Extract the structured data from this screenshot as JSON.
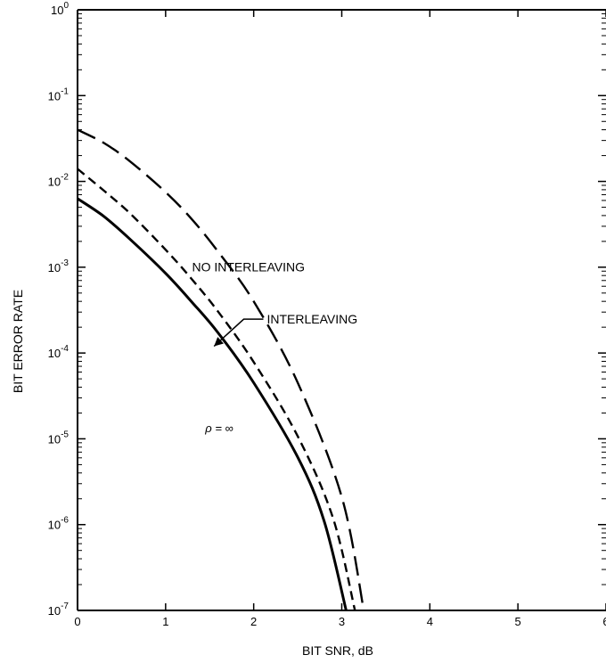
{
  "chart_data": {
    "type": "line",
    "title": "",
    "xlabel": "BIT SNR, dB",
    "ylabel": "BIT ERROR RATE",
    "xlim": [
      0,
      6
    ],
    "ylim": [
      1e-07,
      1
    ],
    "yscale": "log",
    "grid": false,
    "x_ticks": [
      0,
      1,
      2,
      3,
      4,
      5,
      6
    ],
    "x_tick_labels": [
      "0",
      "1",
      "2",
      "3",
      "4",
      "5",
      "6"
    ],
    "y_ticks": [
      {
        "base": "10",
        "exp": "0",
        "value": 1
      },
      {
        "base": "10",
        "exp": "-1",
        "value": 0.1
      },
      {
        "base": "10",
        "exp": "-2",
        "value": 0.01
      },
      {
        "base": "10",
        "exp": "-3",
        "value": 0.001
      },
      {
        "base": "10",
        "exp": "-4",
        "value": 0.0001
      },
      {
        "base": "10",
        "exp": "-5",
        "value": 1e-05
      },
      {
        "base": "10",
        "exp": "-6",
        "value": 1e-06
      },
      {
        "base": "10",
        "exp": "-7",
        "value": 1e-07
      }
    ],
    "series": [
      {
        "style": "long-dash",
        "x": [
          0,
          0.3,
          0.6,
          1.0,
          1.3,
          1.6,
          2.0,
          2.5,
          3.0,
          3.25
        ],
        "y": [
          0.04,
          0.028,
          0.017,
          0.0075,
          0.0036,
          0.0015,
          0.0004,
          4.5e-05,
          2.1e-06,
          1e-07
        ]
      },
      {
        "style": "short-dash",
        "x": [
          0,
          0.3,
          0.6,
          1.0,
          1.3,
          1.6,
          2.0,
          2.5,
          2.9,
          3.15
        ],
        "y": [
          0.014,
          0.0078,
          0.0042,
          0.0016,
          0.00072,
          0.0003,
          7.85e-05,
          1.07e-05,
          1.2e-06,
          1e-07
        ]
      },
      {
        "style": "solid",
        "x": [
          0,
          0.3,
          0.6,
          1.0,
          1.3,
          1.6,
          2.0,
          2.5,
          2.8,
          3.05
        ],
        "y": [
          0.0063,
          0.0039,
          0.0021,
          0.00085,
          0.00039,
          0.00017,
          4.5e-05,
          6.1e-06,
          1.1e-06,
          1e-07
        ]
      }
    ],
    "annotations": [
      {
        "text": "NO INTERLEAVING",
        "x": 1.3,
        "y": 0.0009
      },
      {
        "text": "INTERLEAVING",
        "x": 2.15,
        "y": 0.00022
      },
      {
        "text": "ρ = ∞",
        "x": 1.45,
        "y": 1.2e-05
      }
    ]
  }
}
